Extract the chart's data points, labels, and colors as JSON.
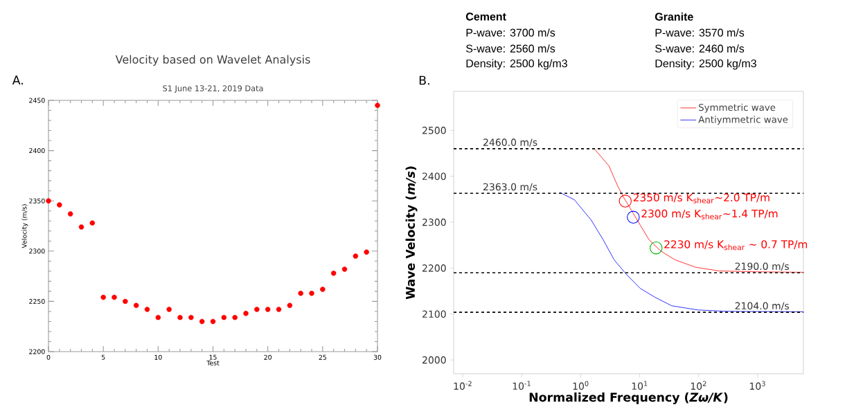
{
  "chart_data": [
    {
      "type": "scatter",
      "title": "Velocity based on Wavelet Analysis",
      "subtitle": "S1 June 13-21, 2019 Data",
      "xlabel": "Test",
      "ylabel": "Velocity (m/s)",
      "color": "#ff0000",
      "marker": "circle",
      "x": [
        0,
        1,
        2,
        3,
        4,
        5,
        6,
        7,
        8,
        9,
        10,
        11,
        12,
        13,
        14,
        15,
        16,
        17,
        18,
        19,
        20,
        21,
        22,
        23,
        24,
        25,
        26,
        27,
        28,
        29,
        30
      ],
      "values": [
        2350,
        2346,
        2337,
        2324,
        2328,
        2254,
        2254,
        2250,
        2246,
        2242,
        2234,
        2242,
        2234,
        2234,
        2230,
        2230,
        2234,
        2234,
        2238,
        2242,
        2242,
        2242,
        2246,
        2258,
        2258,
        2262,
        2278,
        2282,
        2295,
        2299,
        2445
      ],
      "xlim": [
        0,
        30
      ],
      "ylim": [
        2200,
        2450
      ],
      "xticks": [
        0,
        5,
        10,
        15,
        20,
        25,
        30
      ],
      "yticks": [
        2200,
        2250,
        2300,
        2350,
        2400,
        2450
      ],
      "annotations": [
        "A."
      ]
    },
    {
      "type": "other",
      "annotations": [
        "Cement",
        "P-wave: 3700 m/s",
        "S-wave: 2560 m/s",
        "Density: 2500 kg/m3",
        "Granite",
        "P-wave: 3570 m/s",
        "S-wave: 2460 m/s",
        "Density: 2500 kg/m3"
      ]
    },
    {
      "type": "line",
      "xlabel": "Normalized Frequency (*Zω/K*)",
      "ylabel": "Wave Velocity (*m/s*)",
      "log": "x",
      "legend": "top right",
      "series": [
        {
          "name": "Symmetric wave",
          "color": "#ff0000",
          "x": [
            1.7,
            3.0,
            4.2,
            5.3,
            7.4,
            10.3,
            14.4,
            23,
            40,
            89,
            220,
            950,
            6000
          ],
          "values": [
            2460,
            2423,
            2380,
            2355,
            2324,
            2293,
            2262,
            2237,
            2218,
            2202,
            2194,
            2192,
            2191
          ]
        },
        {
          "name": "Antiymmetric wave",
          "color": "#0000ff",
          "x": [
            0.44,
            0.78,
            1.5,
            2.4,
            3.7,
            5.9,
            10.2,
            18,
            35,
            97,
            300,
            6000
          ],
          "values": [
            2365,
            2349,
            2305,
            2262,
            2218,
            2187,
            2156,
            2137,
            2118,
            2109,
            2106,
            2105
          ]
        }
      ],
      "ref_lines": [
        {
          "axis": "y",
          "value": 2460,
          "label": "2460.0 m/s",
          "color": "#000000",
          "line_style": "dashed"
        },
        {
          "axis": "y",
          "value": 2363,
          "label": "2363.0 m/s",
          "color": "#000000",
          "line_style": "dashed"
        },
        {
          "axis": "y",
          "value": 2190,
          "label": "2190.0 m/s",
          "color": "#000000",
          "line_style": "dashed"
        },
        {
          "axis": "y",
          "value": 2104,
          "label": "2104.0 m/s",
          "color": "#000000",
          "line_style": "dashed"
        }
      ],
      "xlim": [
        0.007,
        6000
      ],
      "ylim": [
        1970,
        2585
      ],
      "xticks": [
        {
          "value": 0.01,
          "label": "10$^{-2}$"
        },
        {
          "value": 0.1,
          "label": "10$^{-1}$"
        },
        {
          "value": 1,
          "label": "10$^{0}$"
        },
        {
          "value": 10,
          "label": "10$^{1}$"
        },
        {
          "value": 100,
          "label": "10$^{2}$"
        },
        {
          "value": 1000,
          "label": "10$^{3}$"
        }
      ],
      "yticks": [
        2000,
        2100,
        2200,
        2300,
        2400,
        2500
      ],
      "annotations": [
        "B.",
        {
          "text": "2350 m/s   K$_{shear}$~2.0 TP/m",
          "x": 5.7,
          "y": 2346
        },
        {
          "text": "2300 m/s   K$_{shear}$~1.4 TP/m",
          "x": 7.8,
          "y": 2311
        },
        {
          "text": "2230 m/s   K$_{shear}$ ~ 0.7 TP/m",
          "x": 19,
          "y": 2244
        }
      ]
    }
  ]
}
